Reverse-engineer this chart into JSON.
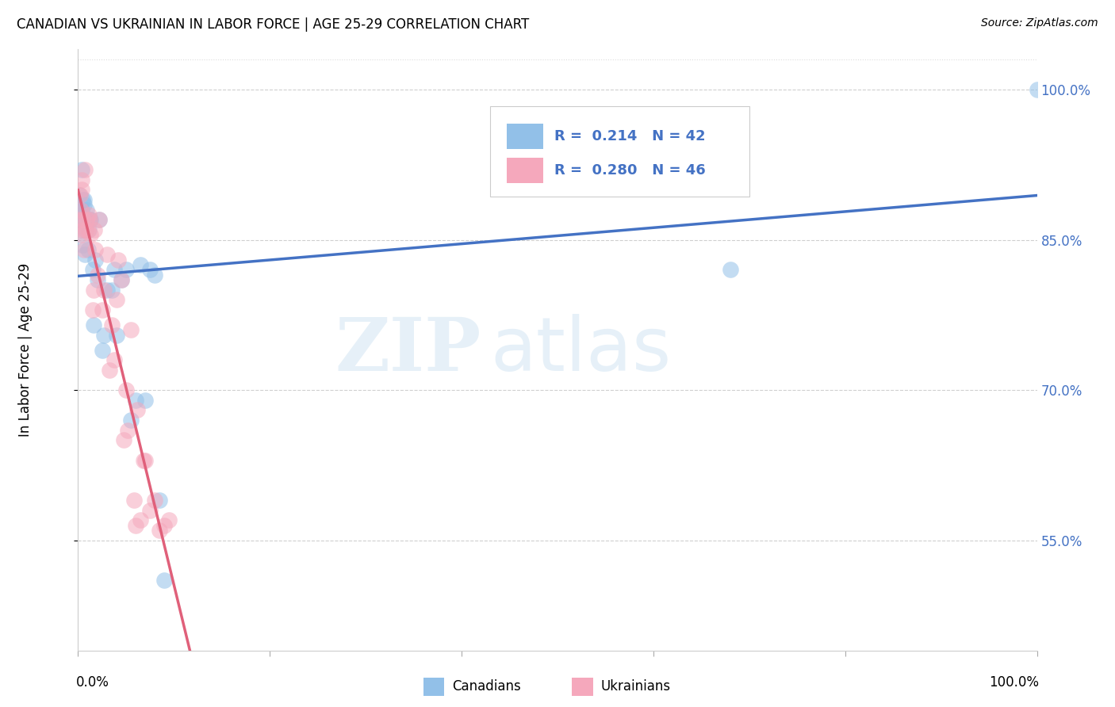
{
  "title": "CANADIAN VS UKRAINIAN IN LABOR FORCE | AGE 25-29 CORRELATION CHART",
  "source": "Source: ZipAtlas.com",
  "ylabel": "In Labor Force | Age 25-29",
  "yticks": [
    0.55,
    0.7,
    0.85,
    1.0
  ],
  "ytick_labels": [
    "55.0%",
    "70.0%",
    "85.0%",
    "100.0%"
  ],
  "legend_r_canadian": "0.214",
  "legend_n_canadian": "42",
  "legend_r_ukrainian": "0.280",
  "legend_n_ukrainian": "46",
  "canadian_color": "#92C0E8",
  "ukrainian_color": "#F5A8BC",
  "canadian_line_color": "#4472C4",
  "ukrainian_line_color": "#E0607A",
  "canadian_x": [
    0.001,
    0.001,
    0.002,
    0.003,
    0.003,
    0.004,
    0.004,
    0.005,
    0.005,
    0.006,
    0.006,
    0.007,
    0.008,
    0.008,
    0.009,
    0.01,
    0.011,
    0.012,
    0.013,
    0.015,
    0.016,
    0.018,
    0.02,
    0.022,
    0.025,
    0.027,
    0.03,
    0.035,
    0.038,
    0.04,
    0.045,
    0.05,
    0.055,
    0.06,
    0.065,
    0.07,
    0.075,
    0.08,
    0.085,
    0.09,
    0.68,
    1.0
  ],
  "canadian_y": [
    0.87,
    0.895,
    0.875,
    0.86,
    0.88,
    0.92,
    0.88,
    0.89,
    0.845,
    0.89,
    0.885,
    0.835,
    0.87,
    0.86,
    0.88,
    0.84,
    0.86,
    0.87,
    0.87,
    0.82,
    0.765,
    0.83,
    0.81,
    0.87,
    0.74,
    0.755,
    0.8,
    0.8,
    0.82,
    0.755,
    0.81,
    0.82,
    0.67,
    0.69,
    0.825,
    0.69,
    0.82,
    0.815,
    0.59,
    0.51,
    0.82,
    1.0
  ],
  "ukrainian_x": [
    0.001,
    0.002,
    0.003,
    0.003,
    0.004,
    0.004,
    0.005,
    0.005,
    0.006,
    0.007,
    0.008,
    0.009,
    0.01,
    0.011,
    0.012,
    0.013,
    0.015,
    0.016,
    0.017,
    0.018,
    0.02,
    0.022,
    0.025,
    0.027,
    0.03,
    0.033,
    0.035,
    0.038,
    0.04,
    0.042,
    0.045,
    0.048,
    0.05,
    0.052,
    0.055,
    0.058,
    0.06,
    0.062,
    0.065,
    0.068,
    0.07,
    0.075,
    0.08,
    0.085,
    0.09,
    0.095
  ],
  "ukrainian_y": [
    0.87,
    0.895,
    0.855,
    0.88,
    0.9,
    0.91,
    0.86,
    0.87,
    0.84,
    0.92,
    0.86,
    0.87,
    0.86,
    0.875,
    0.87,
    0.855,
    0.78,
    0.8,
    0.86,
    0.84,
    0.815,
    0.87,
    0.78,
    0.8,
    0.835,
    0.72,
    0.765,
    0.73,
    0.79,
    0.83,
    0.81,
    0.65,
    0.7,
    0.66,
    0.76,
    0.59,
    0.565,
    0.68,
    0.57,
    0.63,
    0.63,
    0.58,
    0.59,
    0.56,
    0.565,
    0.57
  ],
  "watermark_zip": "ZIP",
  "watermark_atlas": "atlas",
  "background_color": "#FFFFFF",
  "grid_color": "#BBBBBB",
  "ylim_min": 0.44,
  "ylim_max": 1.04,
  "xlim_min": 0.0,
  "xlim_max": 1.0
}
